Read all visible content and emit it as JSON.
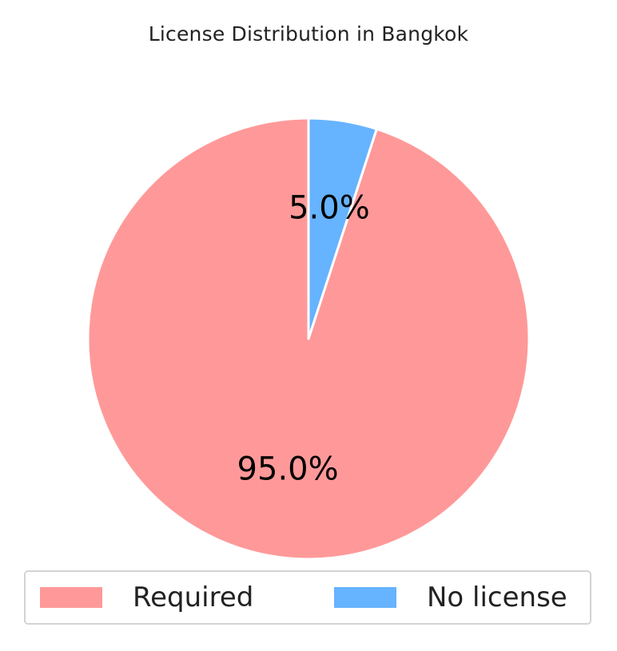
{
  "chart_data": {
    "type": "pie",
    "title": "License Distribution in Bangkok",
    "slices": [
      {
        "label": "Required",
        "value": 95.0,
        "display": "95.0%",
        "color": "#ff9999"
      },
      {
        "label": "No license",
        "value": 5.0,
        "display": "5.0%",
        "color": "#66b3ff"
      }
    ],
    "start_angle": "top, counterclockwise",
    "slice_edge_color": "#ffffff",
    "legend": {
      "placement": "bottom",
      "columns": 2,
      "entries": [
        "Required",
        "No license"
      ]
    }
  }
}
